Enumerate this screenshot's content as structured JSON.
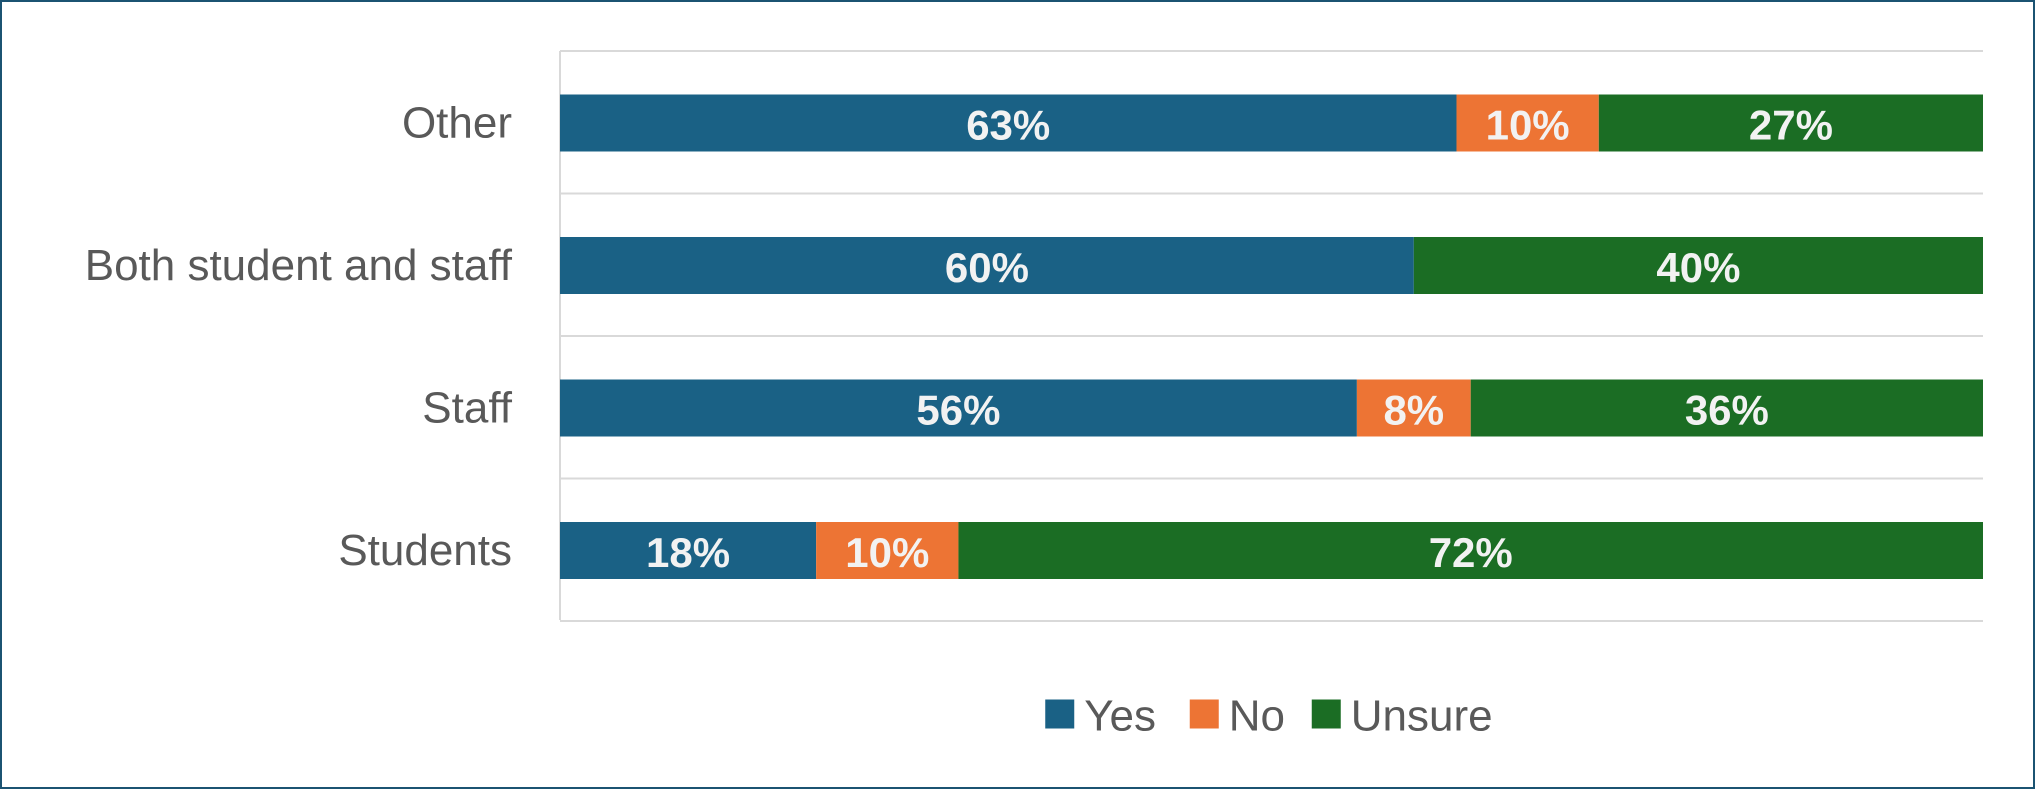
{
  "chart_data": {
    "type": "bar",
    "orientation": "horizontal",
    "stacked": true,
    "categories": [
      "Other",
      "Both student and staff",
      "Staff",
      "Students"
    ],
    "series": [
      {
        "name": "Yes",
        "color": "#1a6185",
        "values": [
          63,
          60,
          56,
          18
        ],
        "labels": [
          "63%",
          "60%",
          "56%",
          "18%"
        ]
      },
      {
        "name": "No",
        "color": "#ed7434",
        "values": [
          10,
          0,
          8,
          10
        ],
        "labels": [
          "10%",
          "",
          "8%",
          "10%"
        ]
      },
      {
        "name": "Unsure",
        "color": "#1b6d24",
        "values": [
          27,
          40,
          36,
          72
        ],
        "labels": [
          "27%",
          "40%",
          "36%",
          "72%"
        ]
      }
    ],
    "xlim": [
      0,
      100
    ],
    "grid": true,
    "legend_position": "bottom",
    "title": "",
    "xlabel": "",
    "ylabel": ""
  }
}
